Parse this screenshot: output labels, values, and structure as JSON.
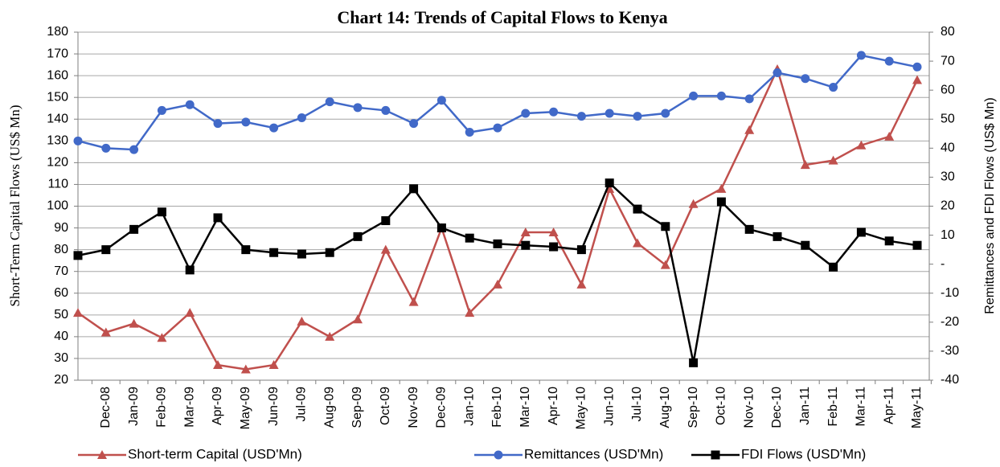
{
  "chart_data": {
    "type": "line",
    "title": "Chart 14: Trends of Capital Flows to Kenya",
    "y_label": "Short-Term Capital Flows (US$ Mn)",
    "y2_label": "Remittances and FDI Flows (US$ Mn)",
    "categories": [
      null,
      "Dec-08",
      "Jan-09",
      "Feb-09",
      "Mar-09",
      "Apr-09",
      "May-09",
      "Jun-09",
      "Jul-09",
      "Aug-09",
      "Sep-09",
      "Oct-09",
      "Nov-09",
      "Dec-09",
      "Jan-10",
      "Feb-10",
      "Mar-10",
      "Apr-10",
      "May-10",
      "Jun-10",
      "Jul-10",
      "Aug-10",
      "Sep-10",
      "Oct-10",
      "Nov-10",
      "Dec-10",
      "Jan-11",
      "Feb-11",
      "Mar-11",
      "Apr-11",
      "May-11"
    ],
    "series": [
      {
        "name": "Short-term Capital (USD'Mn)",
        "color": "#c0504d",
        "marker": "triangle",
        "axis": "y",
        "values": [
          51,
          42,
          46,
          39.5,
          51,
          27,
          25,
          27,
          47,
          40,
          48,
          80,
          56,
          90,
          51,
          64,
          88,
          88,
          64,
          108,
          83,
          73,
          101,
          108,
          135,
          163,
          119,
          121,
          128,
          132,
          158
        ]
      },
      {
        "name": "Remittances (USD'Mn)",
        "color": "#4169c8",
        "marker": "circle",
        "axis": "y2",
        "values": [
          42.5,
          40,
          39.5,
          53,
          55,
          48.5,
          49,
          47,
          50.5,
          56,
          54,
          53,
          48.5,
          56.5,
          45.5,
          47,
          52,
          52.5,
          51,
          52,
          51,
          52,
          58,
          58,
          57,
          66,
          64,
          61,
          72,
          70,
          68
        ]
      },
      {
        "name": "FDI Flows (USD'Mn)",
        "color": "#000000",
        "marker": "square",
        "axis": "y2",
        "values": [
          3,
          5,
          12,
          18,
          -2,
          16,
          5,
          4,
          3.5,
          4,
          9.5,
          15,
          26,
          12.5,
          9,
          7,
          6.5,
          6,
          5,
          28,
          19,
          13,
          -34,
          21.5,
          12,
          9.5,
          6.5,
          -1,
          11,
          8,
          6.5
        ]
      }
    ],
    "ylim": [
      20,
      180
    ],
    "yticks": [
      20,
      30,
      40,
      50,
      60,
      70,
      80,
      90,
      100,
      110,
      120,
      130,
      140,
      150,
      160,
      170,
      180
    ],
    "y2lim": [
      -40,
      80
    ],
    "y2ticks": [
      -40,
      -30,
      -20,
      -10,
      {
        "value": 0,
        "label": "-"
      },
      10,
      20,
      30,
      40,
      50,
      60,
      70,
      80
    ],
    "grid": true,
    "legend": "bottom"
  }
}
